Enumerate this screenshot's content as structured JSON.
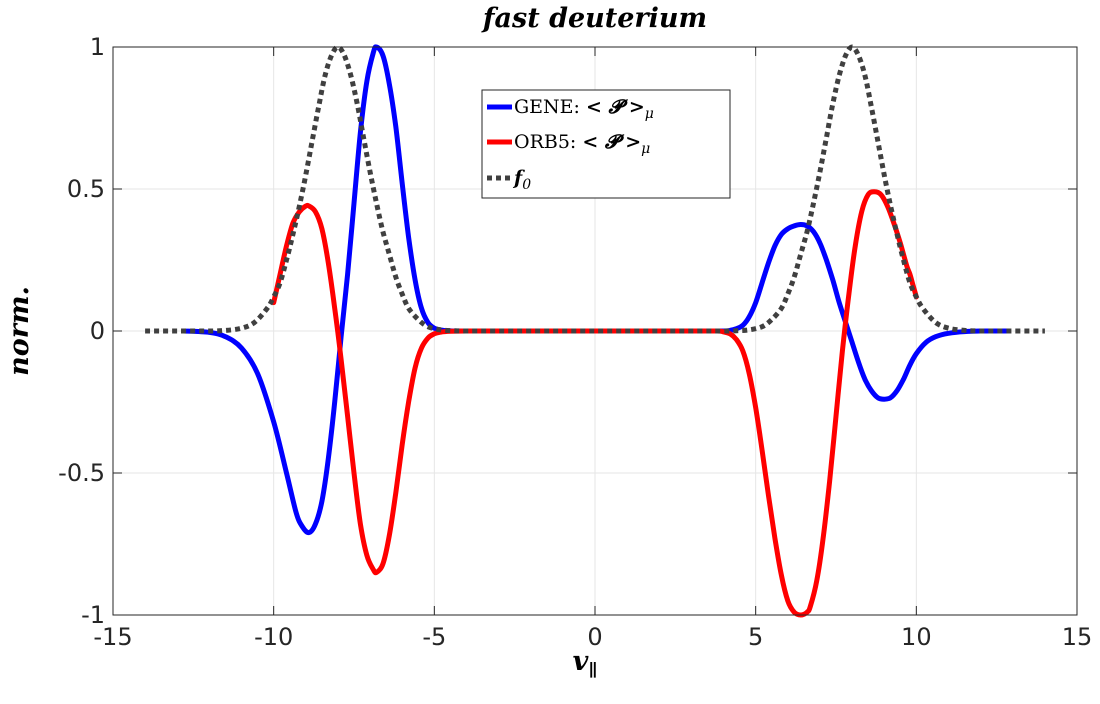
{
  "chart_data": {
    "type": "line",
    "title": "fast deuterium",
    "xlabel": "v∥",
    "ylabel": "norm.",
    "xlim": [
      -15,
      15
    ],
    "ylim": [
      -1,
      1
    ],
    "xticks": [
      -15,
      -10,
      -5,
      0,
      5,
      10,
      15
    ],
    "yticks": [
      -1,
      -0.5,
      0,
      0.5,
      1
    ],
    "xtick_labels": [
      "-15",
      "-10",
      "-5",
      "0",
      "5",
      "10",
      "15"
    ],
    "ytick_labels": [
      "-1",
      "-0.5",
      "0",
      "0.5",
      "1"
    ],
    "grid": true,
    "legend_position": "top-center",
    "series": [
      {
        "name": "GENE: < 𝓟 >μ",
        "legend_prefix": "GENE: ",
        "legend_math": "< 𝓟 >",
        "legend_sub": "μ",
        "color": "#0000ff",
        "style": "solid",
        "x": [
          -12.8,
          -12,
          -11.5,
          -11,
          -10.5,
          -10,
          -9.6,
          -9.3,
          -9.1,
          -8.9,
          -8.7,
          -8.5,
          -8.3,
          -8.1,
          -7.9,
          -7.7,
          -7.5,
          -7.3,
          -7.1,
          -6.9,
          -6.8,
          -6.6,
          -6.4,
          -6.2,
          -6.0,
          -5.8,
          -5.6,
          -5.4,
          -5.2,
          -5.0,
          -4.8,
          -4.6,
          -4.2,
          -3,
          0,
          3,
          4.0,
          4.2,
          4.4,
          4.6,
          4.8,
          5.0,
          5.2,
          5.4,
          5.6,
          5.8,
          6.0,
          6.2,
          6.4,
          6.6,
          6.8,
          7.0,
          7.2,
          7.4,
          7.6,
          7.8,
          8.0,
          8.2,
          8.4,
          8.6,
          8.8,
          9.0,
          9.2,
          9.4,
          9.6,
          9.8,
          10.0,
          10.3,
          10.6,
          11.0,
          11.5,
          12.0,
          12.8
        ],
        "y": [
          0,
          -0.005,
          -0.02,
          -0.06,
          -0.15,
          -0.32,
          -0.5,
          -0.64,
          -0.69,
          -0.71,
          -0.68,
          -0.6,
          -0.45,
          -0.25,
          -0.02,
          0.2,
          0.45,
          0.7,
          0.88,
          0.98,
          1.0,
          0.97,
          0.87,
          0.72,
          0.52,
          0.33,
          0.18,
          0.08,
          0.03,
          0.01,
          0.004,
          0.001,
          0,
          0,
          0,
          0,
          0,
          0.002,
          0.008,
          0.02,
          0.05,
          0.1,
          0.17,
          0.24,
          0.3,
          0.34,
          0.36,
          0.37,
          0.375,
          0.37,
          0.35,
          0.31,
          0.25,
          0.18,
          0.1,
          0.03,
          -0.04,
          -0.11,
          -0.17,
          -0.21,
          -0.235,
          -0.24,
          -0.235,
          -0.21,
          -0.17,
          -0.12,
          -0.08,
          -0.04,
          -0.02,
          -0.008,
          -0.002,
          0,
          0
        ]
      },
      {
        "name": "ORB5: < 𝓟 >μ",
        "legend_prefix": "ORB5: ",
        "legend_math": "< 𝓟 >",
        "legend_sub": "μ",
        "color": "#ff0000",
        "style": "solid",
        "x": [
          -10.0,
          -9.8,
          -9.6,
          -9.4,
          -9.2,
          -9.0,
          -8.9,
          -8.7,
          -8.5,
          -8.3,
          -8.1,
          -7.9,
          -7.7,
          -7.5,
          -7.3,
          -7.1,
          -6.9,
          -6.8,
          -6.6,
          -6.4,
          -6.2,
          -6.0,
          -5.8,
          -5.6,
          -5.4,
          -5.2,
          -5.0,
          -4.8,
          -4.5,
          -4.0,
          -3,
          0,
          3,
          3.8,
          4.0,
          4.2,
          4.4,
          4.6,
          4.8,
          5.0,
          5.2,
          5.4,
          5.6,
          5.8,
          6.0,
          6.2,
          6.4,
          6.6,
          6.7,
          6.9,
          7.1,
          7.3,
          7.5,
          7.7,
          7.9,
          8.1,
          8.3,
          8.5,
          8.7,
          8.9,
          9.1,
          9.3,
          9.5,
          9.7,
          9.8,
          9.9,
          10.0
        ],
        "y": [
          0.1,
          0.2,
          0.3,
          0.38,
          0.42,
          0.44,
          0.44,
          0.42,
          0.36,
          0.24,
          0.08,
          -0.1,
          -0.3,
          -0.5,
          -0.68,
          -0.79,
          -0.84,
          -0.85,
          -0.82,
          -0.72,
          -0.57,
          -0.4,
          -0.25,
          -0.13,
          -0.06,
          -0.025,
          -0.01,
          -0.004,
          -0.001,
          0,
          0,
          0,
          0,
          0,
          -0.003,
          -0.01,
          -0.03,
          -0.07,
          -0.15,
          -0.27,
          -0.42,
          -0.58,
          -0.73,
          -0.86,
          -0.95,
          -0.99,
          -1.0,
          -0.99,
          -0.97,
          -0.88,
          -0.73,
          -0.53,
          -0.3,
          -0.07,
          0.13,
          0.3,
          0.42,
          0.48,
          0.49,
          0.48,
          0.44,
          0.38,
          0.31,
          0.23,
          0.2,
          0.16,
          0.12
        ]
      },
      {
        "name": "f0",
        "legend_math": "f",
        "legend_sub": "0",
        "color": "#404040",
        "style": "dotted",
        "x": [
          -14,
          -13,
          -12,
          -11.5,
          -11,
          -10.6,
          -10.2,
          -10,
          -9.8,
          -9.6,
          -9.4,
          -9.2,
          -9.0,
          -8.8,
          -8.6,
          -8.4,
          -8.2,
          -8.0,
          -7.8,
          -7.6,
          -7.4,
          -7.2,
          -7.0,
          -6.8,
          -6.6,
          -6.4,
          -6.2,
          -6.0,
          -5.8,
          -5.5,
          -5.2,
          -4.8,
          -4.4,
          -4,
          -3,
          0,
          3,
          4,
          4.4,
          4.8,
          5.2,
          5.5,
          5.8,
          6.0,
          6.2,
          6.4,
          6.6,
          6.8,
          7.0,
          7.2,
          7.4,
          7.6,
          7.8,
          8.0,
          8.2,
          8.4,
          8.6,
          8.8,
          9.0,
          9.2,
          9.4,
          9.6,
          9.8,
          10.0,
          10.2,
          10.6,
          11,
          11.5,
          12,
          13,
          14
        ],
        "y": [
          0,
          0,
          0,
          0.002,
          0.01,
          0.03,
          0.08,
          0.12,
          0.17,
          0.25,
          0.34,
          0.44,
          0.55,
          0.67,
          0.79,
          0.9,
          0.97,
          1.0,
          0.97,
          0.9,
          0.8,
          0.68,
          0.56,
          0.45,
          0.35,
          0.27,
          0.19,
          0.13,
          0.08,
          0.04,
          0.015,
          0.004,
          0.001,
          0,
          0,
          0,
          0,
          0,
          0.001,
          0.004,
          0.015,
          0.04,
          0.08,
          0.13,
          0.19,
          0.27,
          0.35,
          0.45,
          0.56,
          0.68,
          0.8,
          0.9,
          0.97,
          1.0,
          0.97,
          0.9,
          0.79,
          0.67,
          0.55,
          0.44,
          0.34,
          0.25,
          0.17,
          0.12,
          0.08,
          0.03,
          0.01,
          0.002,
          0,
          0,
          0
        ]
      }
    ]
  }
}
